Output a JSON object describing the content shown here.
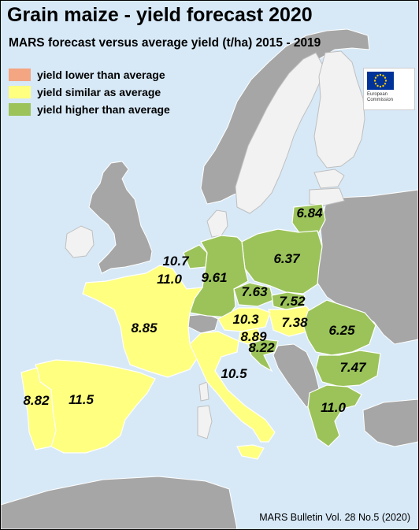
{
  "title": "Grain maize - yield forecast 2020",
  "subtitle": "MARS forecast versus average yield (t/ha) 2015 - 2019",
  "legend": [
    {
      "label": "yield lower than average",
      "color": "#f4a582"
    },
    {
      "label": "yield similar as average",
      "color": "#ffff80"
    },
    {
      "label": "yield higher than average",
      "color": "#9bc35a"
    }
  ],
  "logo": {
    "line1": "European",
    "line2": "Commission"
  },
  "colors": {
    "sea": "#d7e9f7",
    "non_eu": "#a6a6a6",
    "other_eu": "#f2f2f2",
    "border": "#ffffff"
  },
  "regions": [
    {
      "id": "lithuania",
      "value": "6.84",
      "class": "higher"
    },
    {
      "id": "poland",
      "value": "6.37",
      "class": "higher"
    },
    {
      "id": "netherlands",
      "value": "10.7",
      "class": "higher"
    },
    {
      "id": "belgium",
      "value": "11.0",
      "class": "higher"
    },
    {
      "id": "germany",
      "value": "9.61",
      "class": "higher"
    },
    {
      "id": "czechia",
      "value": "7.63",
      "class": "higher"
    },
    {
      "id": "slovakia",
      "value": "7.52",
      "class": "higher"
    },
    {
      "id": "hungary",
      "value": "7.38",
      "class": "similar"
    },
    {
      "id": "austria",
      "value": "10.3",
      "class": "similar"
    },
    {
      "id": "slovenia",
      "value": "8.89",
      "class": "similar"
    },
    {
      "id": "croatia",
      "value": "8.22",
      "class": "higher"
    },
    {
      "id": "romania",
      "value": "6.25",
      "class": "higher"
    },
    {
      "id": "bulgaria",
      "value": "7.47",
      "class": "higher"
    },
    {
      "id": "greece",
      "value": "11.0",
      "class": "higher"
    },
    {
      "id": "france",
      "value": "8.85",
      "class": "similar"
    },
    {
      "id": "italy",
      "value": "10.5",
      "class": "similar"
    },
    {
      "id": "spain",
      "value": "11.5",
      "class": "similar"
    },
    {
      "id": "portugal",
      "value": "8.82",
      "class": "similar"
    }
  ],
  "source": "MARS Bulletin Vol. 28 No.5 (2020)"
}
